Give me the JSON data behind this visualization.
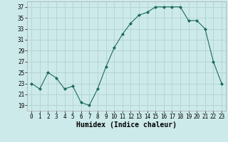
{
  "x": [
    0,
    1,
    2,
    3,
    4,
    5,
    6,
    7,
    8,
    9,
    10,
    11,
    12,
    13,
    14,
    15,
    16,
    17,
    18,
    19,
    20,
    21,
    22,
    23
  ],
  "y": [
    23,
    22,
    25,
    24,
    22,
    22.5,
    19.5,
    19,
    22,
    26,
    29.5,
    32,
    34,
    35.5,
    36,
    37,
    37,
    37,
    37,
    34.5,
    34.5,
    33,
    27,
    23
  ],
  "xlabel": "Humidex (Indice chaleur)",
  "xlim": [
    -0.5,
    23.5
  ],
  "ylim": [
    18,
    38
  ],
  "yticks": [
    19,
    21,
    23,
    25,
    27,
    29,
    31,
    33,
    35,
    37
  ],
  "xticks": [
    0,
    1,
    2,
    3,
    4,
    5,
    6,
    7,
    8,
    9,
    10,
    11,
    12,
    13,
    14,
    15,
    16,
    17,
    18,
    19,
    20,
    21,
    22,
    23
  ],
  "line_color": "#1a6b5a",
  "bg_color": "#cdeaea",
  "grid_color": "#b0cccc",
  "label_fontsize": 7,
  "tick_fontsize": 5.5
}
